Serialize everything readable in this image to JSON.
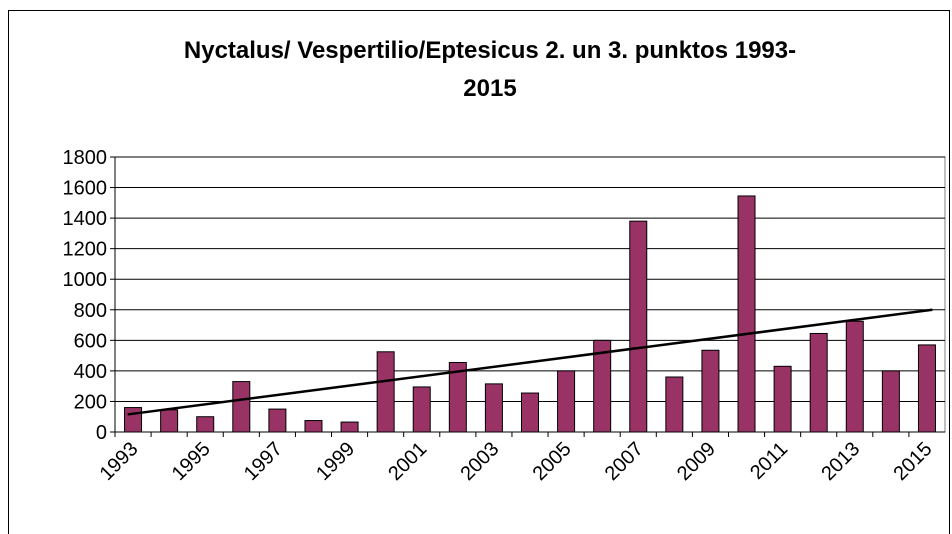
{
  "chart_data": {
    "type": "bar",
    "title": [
      "Nyctalus/ Vespertilio/Eptesicus 2. un 3. punktos 1993-",
      "2015"
    ],
    "categories": [
      "1993",
      null,
      "1995",
      null,
      "1997",
      null,
      "1999",
      null,
      "2001",
      null,
      "2003",
      null,
      "2005",
      null,
      "2007",
      null,
      "2009",
      null,
      "2011",
      null,
      "2013",
      null,
      "2015"
    ],
    "values": [
      160,
      145,
      100,
      330,
      150,
      75,
      65,
      525,
      295,
      455,
      315,
      255,
      400,
      600,
      1380,
      360,
      535,
      1545,
      430,
      645,
      725,
      400,
      570
    ],
    "color": "#993366",
    "trendline": {
      "start": 115,
      "end": 800,
      "color": "#000000"
    },
    "ylim": [
      0,
      1800
    ],
    "yticks": [
      0,
      200,
      400,
      600,
      800,
      1000,
      1200,
      1400,
      1600,
      1800
    ],
    "grid": true
  }
}
